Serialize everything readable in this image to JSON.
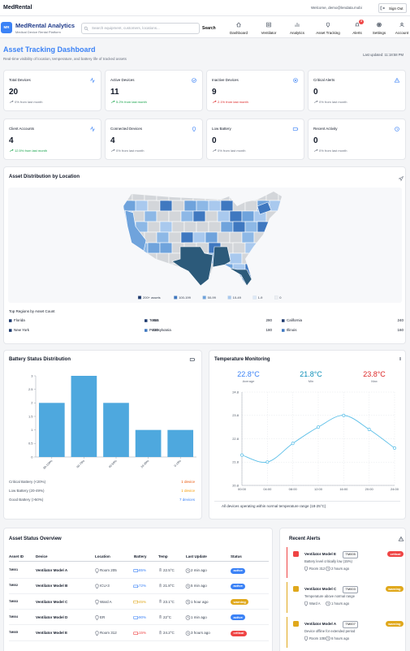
{
  "topbar": {
    "brand": "MedRental",
    "welcome": "Welcome, demo@lendata.mobi",
    "sign_out": "Sign Out"
  },
  "header": {
    "logo": "MR",
    "title": "MedRental Analytics",
    "subtitle": "Medical Device Rental Platform",
    "search_placeholder": "Search equipment, customers, locations...",
    "search_button": "Search",
    "nav": [
      {
        "label": "Dashboard"
      },
      {
        "label": "Ventilator"
      },
      {
        "label": "Analytics"
      },
      {
        "label": "Asset Tracking"
      },
      {
        "label": "Alerts",
        "badge": 3
      },
      {
        "label": "Settings"
      },
      {
        "label": "Account"
      }
    ]
  },
  "page": {
    "title": "Asset Tracking Dashboard",
    "subtitle": "Real-time visibility of location, temperature, and battery life of tracked assets",
    "last_updated": "Last updated: 11:18:58 PM"
  },
  "stats": [
    {
      "label": "Total Devices",
      "value": 20,
      "change": "0% from last month",
      "color": "#6b7280"
    },
    {
      "label": "Active Devices",
      "value": 11,
      "change": "5.2% from last month",
      "color": "#16a34a"
    },
    {
      "label": "Inactive Devices",
      "value": 9,
      "change": "2.1% from last month",
      "color": "#dc2626"
    },
    {
      "label": "Critical Alerts",
      "value": 0,
      "change": "0% from last month",
      "color": "#6b7280"
    },
    {
      "label": "Client Accounts",
      "value": 4,
      "change": "12.5% from last month",
      "color": "#16a34a"
    },
    {
      "label": "Connected Devices",
      "value": 4,
      "change": "0% from last month",
      "color": "#6b7280"
    },
    {
      "label": "Low Battery",
      "value": 0,
      "change": "0% from last month",
      "color": "#6b7280"
    },
    {
      "label": "Recent Activity",
      "value": 0,
      "change": "0% from last month",
      "color": "#6b7280"
    }
  ],
  "map": {
    "title": "Asset Distribution by Location",
    "legend": [
      {
        "label": "200+ assets",
        "color": "#1e3a6e"
      },
      {
        "label": "100-199",
        "color": "#3f78c0"
      },
      {
        "label": "50-99",
        "color": "#6fa3dc"
      },
      {
        "label": "10-49",
        "color": "#a9c9ee"
      },
      {
        "label": "1-9",
        "color": "#dce8f7"
      },
      {
        "label": "0",
        "color": "#eceef1"
      }
    ],
    "top_regions_title": "Top Regions by Asset Count",
    "top_regions": [
      {
        "name": "Florida",
        "count": 350
      },
      {
        "name": "Texas",
        "count": 280
      },
      {
        "name": "California",
        "count": 240
      },
      {
        "name": "New York",
        "count": 220
      },
      {
        "name": "Pennsylvania",
        "count": 180
      },
      {
        "name": "Illinois",
        "count": 160
      }
    ]
  },
  "battery": {
    "title": "Battery Status Distribution",
    "chart_data": {
      "type": "bar",
      "categories": [
        "80-100%",
        "60-79%",
        "40-59%",
        "20-39%",
        "0-19%"
      ],
      "values": [
        2,
        3,
        2,
        1,
        1
      ],
      "color": "#4ea8de",
      "ylim": [
        0,
        3
      ],
      "yticks": [
        0,
        0.5,
        1,
        1.5,
        2,
        2.5,
        3
      ]
    },
    "summary": [
      {
        "label": "Critical Battery (<20%)",
        "value": "1 device",
        "color": "#ea580c"
      },
      {
        "label": "Low Battery (20-49%)",
        "value": "1 device",
        "color": "#f59e0b"
      },
      {
        "label": "Good Battery (>50%)",
        "value": "7 devices",
        "color": "#3b82f6"
      }
    ]
  },
  "temperature": {
    "title": "Temperature Monitoring",
    "stats": [
      {
        "value": "22.8°C",
        "label": "Average",
        "color": "#3b82f6"
      },
      {
        "value": "21.8°C",
        "label": "Min",
        "color": "#0e8fb8"
      },
      {
        "value": "23.8°C",
        "label": "Max",
        "color": "#dc2626"
      }
    ],
    "chart_data": {
      "type": "line",
      "categories": [
        "00:00",
        "04:00",
        "08:00",
        "12:00",
        "16:00",
        "20:00",
        "24:00"
      ],
      "values": [
        22.1,
        21.8,
        22.6,
        23.3,
        23.8,
        23.2,
        22.4
      ],
      "color": "#5bbfe8",
      "ylim": [
        20.8,
        24.8
      ],
      "yticks": [
        20.8,
        21.8,
        22.8,
        23.8,
        24.8
      ],
      "grid": true
    },
    "note": "All devices operating within normal temperature range (18-25°C)"
  },
  "asset_table": {
    "title": "Asset Status Overview",
    "columns": [
      "Asset ID",
      "Device",
      "Location",
      "Battery",
      "Temp",
      "Last Update",
      "Status"
    ],
    "rows": [
      {
        "id": "TM001",
        "device": "Ventilator Model A",
        "location": "Room 205",
        "battery": "85%",
        "temp": "22.5°C",
        "updated": "2 min ago",
        "status": "active",
        "color": "#3b82f6"
      },
      {
        "id": "TM002",
        "device": "Ventilator Model B",
        "location": "ICU-3",
        "battery": "72%",
        "temp": "21.8°C",
        "updated": "5 min ago",
        "status": "active",
        "color": "#3b82f6"
      },
      {
        "id": "TM003",
        "device": "Ventilator Model C",
        "location": "Ward A",
        "battery": "45%",
        "temp": "23.1°C",
        "updated": "1 hour ago",
        "status": "warning",
        "color": "#e0a81c"
      },
      {
        "id": "TM004",
        "device": "Ventilator Model D",
        "location": "ER",
        "battery": "90%",
        "temp": "22°C",
        "updated": "1 min ago",
        "status": "active",
        "color": "#3b82f6"
      },
      {
        "id": "TM005",
        "device": "Ventilator Model E",
        "location": "Room 312",
        "battery": "15%",
        "temp": "24.2°C",
        "updated": "3 hours ago",
        "status": "critical",
        "color": "#ef4444"
      }
    ]
  },
  "alerts": {
    "title": "Recent Alerts",
    "items": [
      {
        "device": "Ventilator Model E",
        "id": "TM005",
        "status": "critical",
        "message": "Battery level critically low (15%)",
        "location": "Room 312",
        "time": "2 hours ago",
        "color": "#ef4444"
      },
      {
        "device": "Ventilator Model C",
        "id": "TM003",
        "status": "warning",
        "message": "Temperature above normal range",
        "location": "Ward A",
        "time": "1 hours ago",
        "color": "#e0a81c"
      },
      {
        "device": "Ventilator Model A",
        "id": "TM007",
        "status": "warning",
        "message": "Device offline for extended period",
        "location": "Room 10B",
        "time": "6 hours ago",
        "color": "#e0a81c"
      }
    ]
  }
}
